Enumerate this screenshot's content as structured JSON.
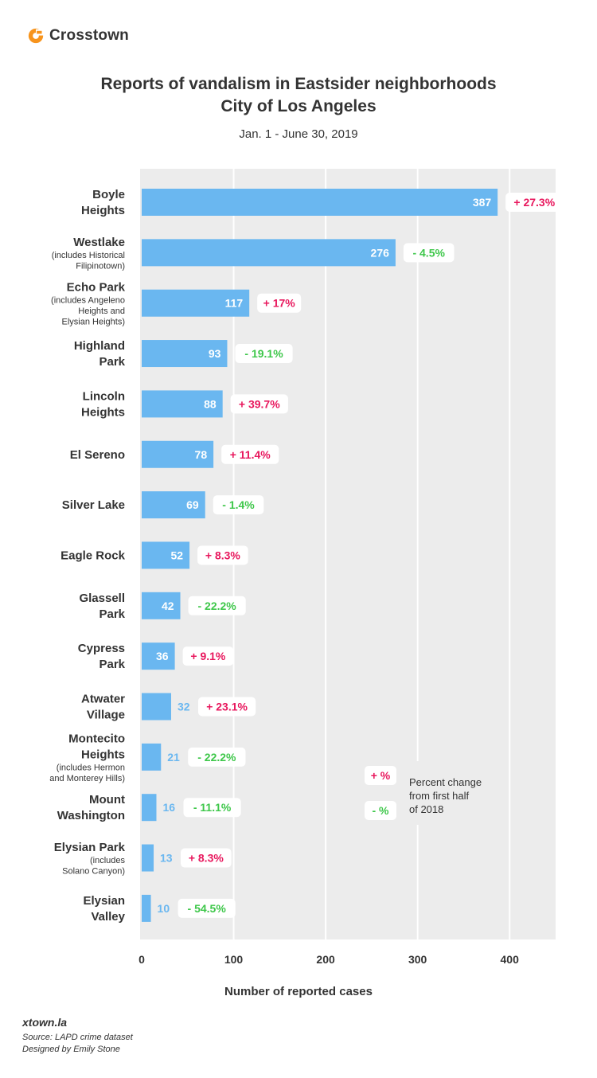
{
  "brand": {
    "name": "Crosstown",
    "accent": "#f7941d"
  },
  "title_line1": "Reports of vandalism in Eastsider neighborhoods",
  "title_line2": "City of Los Angeles",
  "subtitle": "Jan. 1 - June 30, 2019",
  "legend": {
    "plus_label": "+ %",
    "minus_label": "- %",
    "text_lines": [
      "Percent change",
      "from first half",
      "of 2018"
    ]
  },
  "footer": {
    "site": "xtown.la",
    "source": "Source: LAPD crime dataset",
    "designer": "Designed by Emily Stone"
  },
  "colors": {
    "bar": "#6ab7f0",
    "plot_bg": "#ececec",
    "positive": "#e8175d",
    "negative": "#3ec74a",
    "grid": "#ffffff"
  },
  "chart_data": {
    "type": "bar",
    "orientation": "horizontal",
    "xlabel": "Number of reported cases",
    "xlim": [
      0,
      450
    ],
    "xticks": [
      0,
      100,
      200,
      300,
      400
    ],
    "categories": [
      {
        "name_lines": [
          "Boyle",
          "Heights"
        ],
        "note_lines": [],
        "value": 387,
        "change": "+ 27.3%",
        "direction": "up"
      },
      {
        "name_lines": [
          "Westlake"
        ],
        "note_lines": [
          "(includes Historical",
          "Filipinotown)"
        ],
        "value": 276,
        "change": "- 4.5%",
        "direction": "down"
      },
      {
        "name_lines": [
          "Echo Park"
        ],
        "note_lines": [
          "(includes Angeleno",
          "Heights and",
          "Elysian Heights)"
        ],
        "value": 117,
        "change": "+ 17%",
        "direction": "up"
      },
      {
        "name_lines": [
          "Highland",
          "Park"
        ],
        "note_lines": [],
        "value": 93,
        "change": "- 19.1%",
        "direction": "down"
      },
      {
        "name_lines": [
          "Lincoln",
          "Heights"
        ],
        "note_lines": [],
        "value": 88,
        "change": "+ 39.7%",
        "direction": "up"
      },
      {
        "name_lines": [
          "El Sereno"
        ],
        "note_lines": [],
        "value": 78,
        "change": "+ 11.4%",
        "direction": "up"
      },
      {
        "name_lines": [
          "Silver Lake"
        ],
        "note_lines": [],
        "value": 69,
        "change": "- 1.4%",
        "direction": "down"
      },
      {
        "name_lines": [
          "Eagle Rock"
        ],
        "note_lines": [],
        "value": 52,
        "change": "+ 8.3%",
        "direction": "up"
      },
      {
        "name_lines": [
          "Glassell",
          "Park"
        ],
        "note_lines": [],
        "value": 42,
        "change": "- 22.2%",
        "direction": "down"
      },
      {
        "name_lines": [
          "Cypress",
          "Park"
        ],
        "note_lines": [],
        "value": 36,
        "change": "+ 9.1%",
        "direction": "up"
      },
      {
        "name_lines": [
          "Atwater",
          "Village"
        ],
        "note_lines": [],
        "value": 32,
        "change": "+ 23.1%",
        "direction": "up"
      },
      {
        "name_lines": [
          "Montecito",
          "Heights"
        ],
        "note_lines": [
          "(includes Hermon",
          "and Monterey Hills)"
        ],
        "value": 21,
        "change": "- 22.2%",
        "direction": "down"
      },
      {
        "name_lines": [
          "Mount",
          "Washington"
        ],
        "note_lines": [],
        "value": 16,
        "change": "- 11.1%",
        "direction": "down"
      },
      {
        "name_lines": [
          "Elysian Park"
        ],
        "note_lines": [
          "(includes",
          "Solano Canyon)"
        ],
        "value": 13,
        "change": "+ 8.3%",
        "direction": "up"
      },
      {
        "name_lines": [
          "Elysian",
          "Valley"
        ],
        "note_lines": [],
        "value": 10,
        "change": "- 54.5%",
        "direction": "down"
      }
    ]
  }
}
